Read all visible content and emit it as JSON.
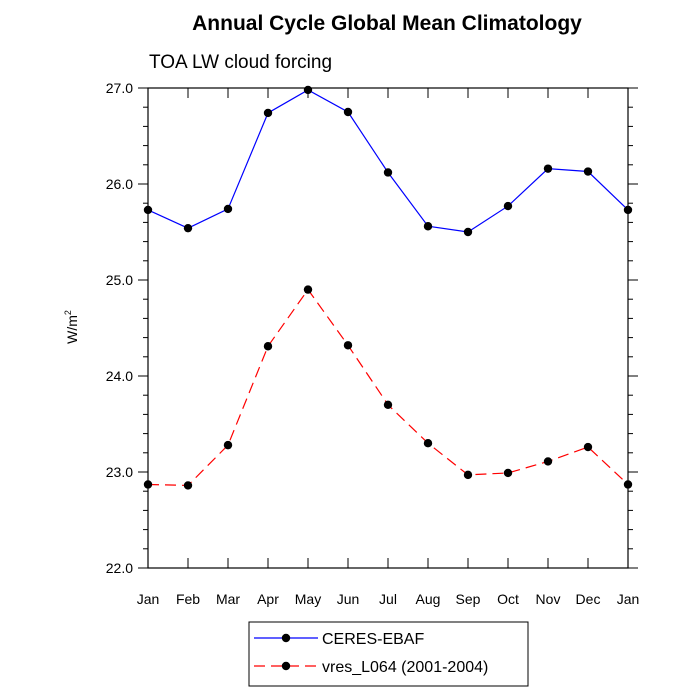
{
  "chart_data": {
    "type": "line",
    "title": "Annual Cycle Global Mean Climatology",
    "subtitle": "TOA LW cloud forcing",
    "ylabel": "W/m",
    "ylabel_sup": "2",
    "xlabel": "",
    "categories": [
      "Jan",
      "Feb",
      "Mar",
      "Apr",
      "May",
      "Jun",
      "Jul",
      "Aug",
      "Sep",
      "Oct",
      "Nov",
      "Dec",
      "Jan"
    ],
    "ylim": [
      22.0,
      27.0
    ],
    "yticks": [
      "22.0",
      "23.0",
      "24.0",
      "25.0",
      "26.0",
      "27.0"
    ],
    "grid": false,
    "legend_position": "bottom",
    "series": [
      {
        "name": "CERES-EBAF",
        "color": "#0000ff",
        "line_style": "solid",
        "marker": "filled-circle",
        "values": [
          25.73,
          25.54,
          25.74,
          26.74,
          26.98,
          26.75,
          26.12,
          25.56,
          25.5,
          25.77,
          26.16,
          26.13,
          25.73
        ]
      },
      {
        "name": "vres_L064 (2001-2004)",
        "color": "#ff0000",
        "line_style": "dashed",
        "marker": "filled-circle",
        "values": [
          22.87,
          22.86,
          23.28,
          24.31,
          24.9,
          24.32,
          23.7,
          23.3,
          22.97,
          22.99,
          23.11,
          23.26,
          22.87
        ]
      }
    ]
  }
}
